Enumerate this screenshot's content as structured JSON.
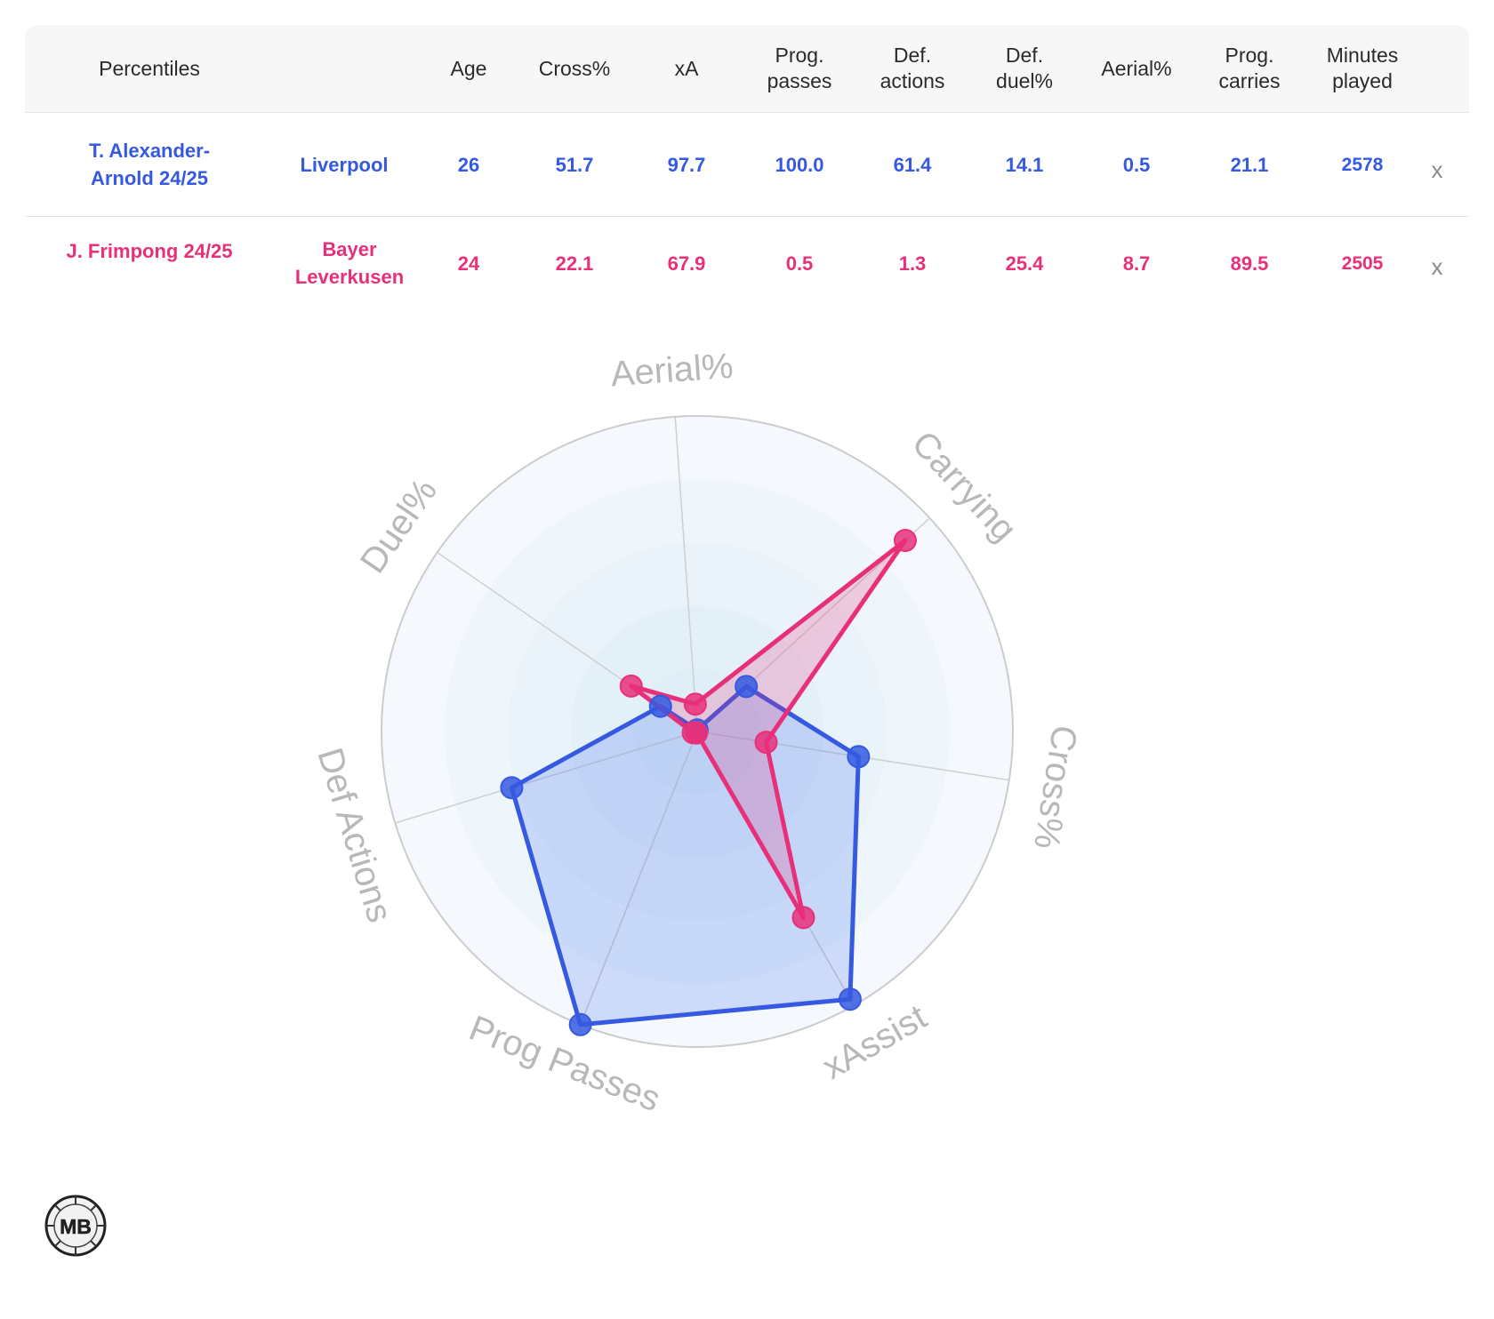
{
  "table": {
    "headers": {
      "percentiles": "Percentiles",
      "age": "Age",
      "cross": "Cross%",
      "xa": "xA",
      "prog_passes": "Prog.\npasses",
      "def_actions": "Def.\nactions",
      "def_duel": "Def.\nduel%",
      "aerial": "Aerial%",
      "prog_carries": "Prog.\ncarries",
      "minutes": "Minutes\nplayed"
    },
    "rows": [
      {
        "player": "T. Alexander-\nArnold 24/25",
        "team": "Liverpool",
        "age": "26",
        "cross": "51.7",
        "xa": "97.7",
        "prog_passes": "100.0",
        "def_actions": "61.4",
        "def_duel": "14.1",
        "aerial": "0.5",
        "prog_carries": "21.1",
        "minutes": "2578",
        "remove": "x",
        "color": "#3559e0"
      },
      {
        "player": "J. Frimpong 24/25",
        "team": "Bayer\nLeverkusen",
        "age": "24",
        "cross": "22.1",
        "xa": "67.9",
        "prog_passes": "0.5",
        "def_actions": "1.3",
        "def_duel": "25.4",
        "aerial": "8.7",
        "prog_carries": "89.5",
        "minutes": "2505",
        "remove": "x",
        "color": "#e8307a"
      }
    ]
  },
  "chart_data": {
    "type": "radar",
    "axes": [
      "Aerial%",
      "Carrying",
      "Cross%",
      "xAssist",
      "Prog Passes",
      "Def Actions",
      "Duel%"
    ],
    "range": [
      0,
      100
    ],
    "rings": 5,
    "series": [
      {
        "name": "T. Alexander-Arnold 24/25",
        "color": "#3559e0",
        "values": [
          0.5,
          21.1,
          51.7,
          97.7,
          100.0,
          61.4,
          14.1
        ]
      },
      {
        "name": "J. Frimpong 24/25",
        "color": "#e8307a",
        "values": [
          8.7,
          89.5,
          22.1,
          67.9,
          0.5,
          1.3,
          25.4
        ]
      }
    ]
  },
  "logo": {
    "text": "MB"
  }
}
